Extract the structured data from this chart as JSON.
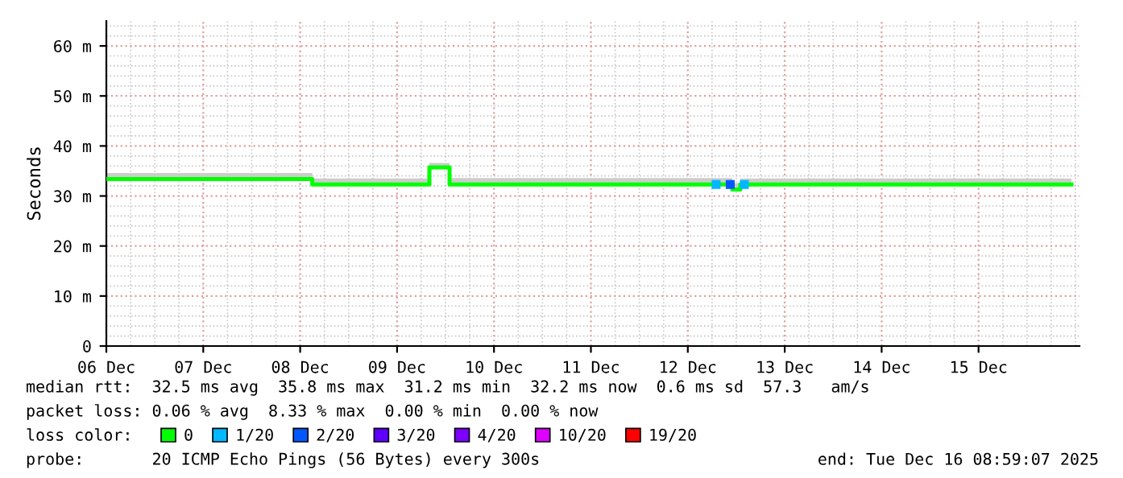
{
  "chart_data": {
    "type": "step",
    "ylabel": "Seconds",
    "xlim": [
      "2025-12-06T00:00",
      "2025-12-16T01:00"
    ],
    "xticks": [
      {
        "value": "2025-12-06",
        "label": "06 Dec"
      },
      {
        "value": "2025-12-07",
        "label": "07 Dec"
      },
      {
        "value": "2025-12-08",
        "label": "08 Dec"
      },
      {
        "value": "2025-12-09",
        "label": "09 Dec"
      },
      {
        "value": "2025-12-10",
        "label": "10 Dec"
      },
      {
        "value": "2025-12-11",
        "label": "11 Dec"
      },
      {
        "value": "2025-12-12",
        "label": "12 Dec"
      },
      {
        "value": "2025-12-13",
        "label": "13 Dec"
      },
      {
        "value": "2025-12-14",
        "label": "14 Dec"
      },
      {
        "value": "2025-12-15",
        "label": "15 Dec"
      }
    ],
    "ylim": [
      0,
      65
    ],
    "yticks": [
      0,
      {
        "value": 10,
        "label": "10 m"
      },
      {
        "value": 20,
        "label": "20 m"
      },
      {
        "value": 30,
        "label": "30 m"
      },
      {
        "value": 40,
        "label": "40 m"
      },
      {
        "value": 50,
        "label": "50 m"
      },
      {
        "value": 60,
        "label": "60 m"
      }
    ],
    "grid": true,
    "legend": "bottom",
    "series": [
      {
        "name": "0",
        "color": "#00ff00",
        "x": [
          "2025-12-06T00:00",
          "2025-12-08T03:00",
          "2025-12-09T08:00",
          "2025-12-09T13:00",
          "2025-12-12T11:00",
          "2025-12-12T13:00",
          "2025-12-15T23:00"
        ],
        "values": [
          33.4,
          32.3,
          35.7,
          32.3,
          31.3,
          32.3,
          32.3
        ],
        "lower": [
          33.4,
          32.3,
          35.7,
          32.3,
          31.3,
          32.3,
          32.3
        ],
        "upper": [
          34.6,
          33.5,
          36.6,
          33.6,
          32.6,
          33.5,
          33.5
        ]
      },
      {
        "name": "1/20",
        "color": "#00b8ff",
        "type": "scatter",
        "marker": "square",
        "x": [
          "2025-12-12T07:00",
          "2025-12-12T14:00"
        ],
        "values": [
          32.3,
          32.3
        ]
      },
      {
        "name": "2/20",
        "color": "#0059ff",
        "type": "scatter",
        "marker": "square",
        "x": [
          "2025-12-12T10:30"
        ],
        "values": [
          32.3
        ]
      },
      {
        "name": "3/20",
        "color": "#5e00ff"
      },
      {
        "name": "4/20",
        "color": "#7e00ff"
      },
      {
        "name": "10/20",
        "color": "#dd00ff"
      },
      {
        "name": "19/20",
        "color": "#ff0000"
      }
    ],
    "annotations": [
      "median rtt:  32.5 ms avg  35.8 ms max  31.2 ms min  32.2 ms now  0.6 ms sd  57.3   am/s",
      "packet loss: 0.06 % avg  8.33 % max  0.00 % min  0.00 % now",
      "loss color:",
      "probe:       20 ICMP Echo Pings (56 Bytes) every 300s",
      "end: Tue Dec 16 08:59:07 2025"
    ]
  }
}
